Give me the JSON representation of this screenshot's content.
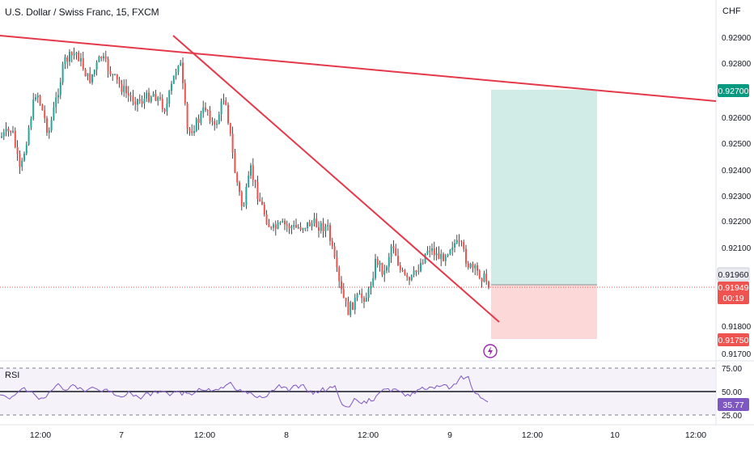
{
  "header": {
    "symbol_title": "U.S. Dollar / Swiss Franc, 15, FXCM",
    "currency": "CHF"
  },
  "price_axis": {
    "ticks": [
      "0.92900",
      "0.92800",
      "0.92600",
      "0.92500",
      "0.92400",
      "0.92300",
      "0.92200",
      "0.92100",
      "0.91800",
      "0.91700"
    ]
  },
  "price_badges": {
    "target": "0.92700",
    "current": "0.91960",
    "last": "0.91949",
    "countdown": "00:19",
    "stop": "0.91750"
  },
  "rsi_panel": {
    "label": "RSI",
    "levels": [
      "75.00",
      "50.00",
      "25.00"
    ],
    "value": "35.77"
  },
  "time_axis": {
    "labels": [
      "12:00",
      "7",
      "12:00",
      "8",
      "12:00",
      "9",
      "12:00",
      "10",
      "12:00"
    ]
  },
  "chart_data": {
    "type": "candlestick",
    "symbol": "USD/CHF",
    "timeframe": "15",
    "price_range": [
      0.917,
      0.9295
    ],
    "current_price": 0.9196,
    "last_price": 0.91949,
    "position": {
      "target_price": 0.927,
      "entry_price": 0.9196,
      "stop_price": 0.9175
    },
    "rsi": {
      "value": 35.77,
      "levels": [
        75,
        50,
        25
      ],
      "range": [
        20,
        80
      ]
    },
    "colors": {
      "up": "#26a69a",
      "down": "#ef5350",
      "wick": "#1f1f1f",
      "trendline": "#e5394a",
      "target_zone": "#cfeae6",
      "stop_zone": "#fcd6d6",
      "rsi_line": "#7e57c2",
      "rsi_badge": "#7e57c2"
    }
  }
}
